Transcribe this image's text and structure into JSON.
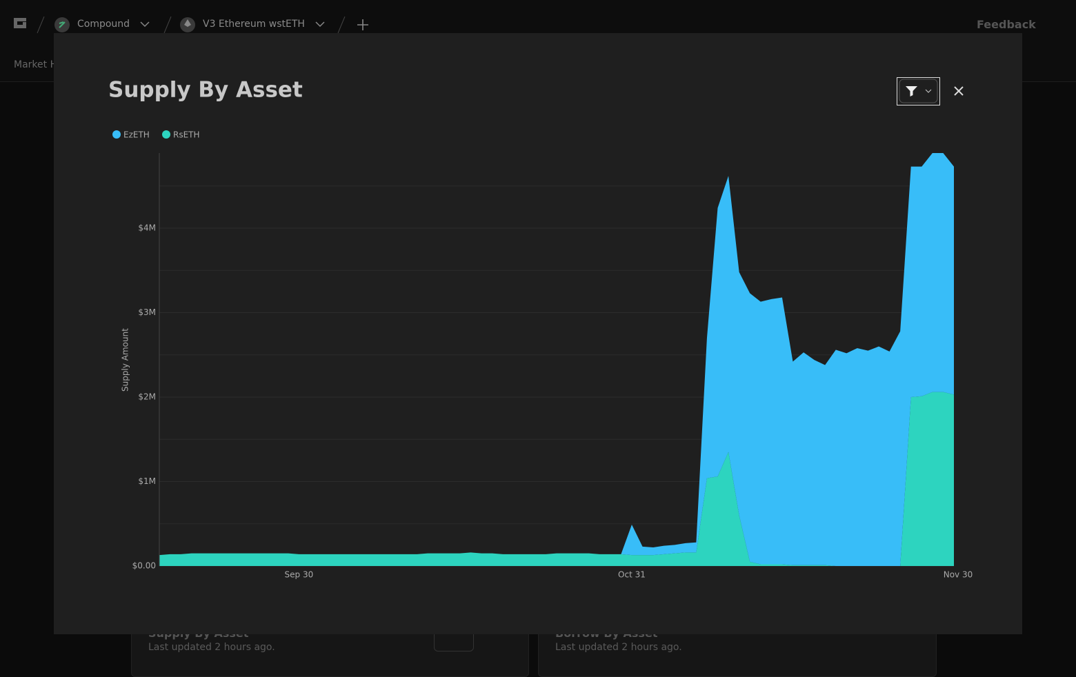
{
  "nav": {
    "protocol": "Compound",
    "market": "V3 Ethereum wstETH",
    "feedback": "Feedback",
    "tab": "Market H"
  },
  "cards": [
    {
      "title": "Supply By Asset",
      "updated": "Last updated 2 hours ago."
    },
    {
      "title": "Borrow By Asset",
      "updated": "Last updated 2 hours ago."
    }
  ],
  "chart_data": {
    "type": "area",
    "stacked": true,
    "title": "Supply By Asset",
    "y_label": "Supply Amount",
    "categories": [
      null,
      null,
      null,
      null,
      null,
      null,
      null,
      null,
      null,
      null,
      null,
      null,
      null,
      "Sep 30",
      null,
      null,
      null,
      null,
      null,
      null,
      null,
      null,
      null,
      null,
      null,
      null,
      null,
      null,
      null,
      null,
      null,
      null,
      null,
      null,
      null,
      null,
      null,
      null,
      null,
      null,
      null,
      null,
      null,
      null,
      "Oct 31",
      null,
      null,
      null,
      null,
      null,
      null,
      null,
      null,
      null,
      null,
      null,
      null,
      null,
      null,
      null,
      null,
      null,
      null,
      null,
      null,
      null,
      null,
      null,
      null,
      null,
      null,
      null,
      null,
      null,
      "Nov 30"
    ],
    "series": [
      {
        "name": "EzETH",
        "color": "#38bdf8",
        "values": [
          0,
          0,
          0,
          0,
          0,
          0,
          0,
          0,
          0,
          0,
          0,
          0,
          0,
          0,
          0,
          0,
          0,
          0,
          0,
          0,
          0,
          0,
          0,
          0,
          0,
          0,
          0,
          0,
          0,
          0,
          0,
          0,
          0,
          0,
          0,
          0,
          0,
          0,
          0,
          0,
          0,
          0,
          0,
          0,
          360000,
          100000,
          90000,
          100000,
          100000,
          110000,
          120000,
          1660000,
          3180000,
          3270000,
          2880000,
          3180000,
          3110000,
          3140000,
          3160000,
          2410000,
          2520000,
          2430000,
          2370000,
          2560000,
          2520000,
          2580000,
          2550000,
          2600000,
          2540000,
          2780000,
          2730000,
          2720000,
          2830000,
          2830000,
          2700000
        ]
      },
      {
        "name": "RsETH",
        "color": "#2dd4bf",
        "values": [
          130000,
          140000,
          140000,
          150000,
          150000,
          150000,
          150000,
          150000,
          150000,
          150000,
          150000,
          150000,
          150000,
          140000,
          140000,
          140000,
          140000,
          140000,
          140000,
          140000,
          140000,
          140000,
          140000,
          140000,
          140000,
          150000,
          150000,
          150000,
          150000,
          160000,
          150000,
          150000,
          140000,
          140000,
          140000,
          140000,
          140000,
          150000,
          150000,
          150000,
          150000,
          140000,
          140000,
          140000,
          130000,
          130000,
          130000,
          140000,
          150000,
          160000,
          160000,
          1040000,
          1060000,
          1350000,
          600000,
          50000,
          20000,
          20000,
          20000,
          10000,
          10000,
          10000,
          10000,
          0,
          0,
          0,
          0,
          0,
          0,
          0,
          2000000,
          2010000,
          2060000,
          2060000,
          2030000
        ]
      }
    ],
    "ylim": [
      0,
      4890000
    ],
    "yticks": [
      {
        "value": 0,
        "label": "$0.00"
      },
      {
        "value": 1000000,
        "label": "$1M"
      },
      {
        "value": 2000000,
        "label": "$2M"
      },
      {
        "value": 3000000,
        "label": "$3M"
      },
      {
        "value": 4000000,
        "label": "$4M"
      }
    ],
    "grid": true,
    "legend": "top-left"
  }
}
